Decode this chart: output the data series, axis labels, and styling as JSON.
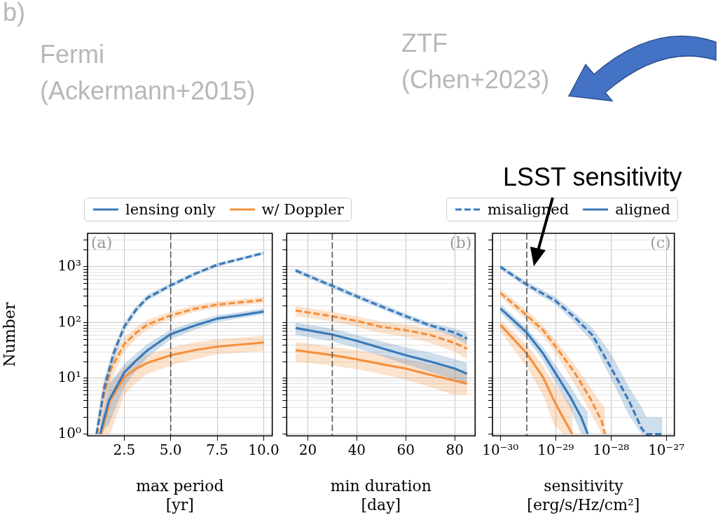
{
  "chart_data": [
    {
      "type": "line",
      "xlabel": "max period\n[yr]",
      "ylabel": "Number",
      "legend": "top",
      "grid": true,
      "log": "y",
      "marker": "none",
      "xlim": [
        0.53,
        10.46
      ],
      "ylim": [
        0.93,
        4000
      ],
      "xticks": [
        {
          "value": 2.5,
          "label": "2.5"
        },
        {
          "value": 5,
          "label": "5.0"
        },
        {
          "value": 7.5,
          "label": "7.5"
        },
        {
          "value": 10,
          "label": "10.0"
        }
      ],
      "yticks": [
        {
          "value": 1,
          "label": "10⁰"
        },
        {
          "value": 2,
          "label": null
        },
        {
          "value": 3,
          "label": null
        },
        {
          "value": 4,
          "label": null
        },
        {
          "value": 5,
          "label": null
        },
        {
          "value": 6,
          "label": null
        },
        {
          "value": 7,
          "label": null
        },
        {
          "value": 8,
          "label": null
        },
        {
          "value": 9,
          "label": null
        },
        {
          "value": 10,
          "label": "10¹"
        },
        {
          "value": 20,
          "label": null
        },
        {
          "value": 30,
          "label": null
        },
        {
          "value": 40,
          "label": null
        },
        {
          "value": 50,
          "label": null
        },
        {
          "value": 60,
          "label": null
        },
        {
          "value": 70,
          "label": null
        },
        {
          "value": 80,
          "label": null
        },
        {
          "value": 90,
          "label": null
        },
        {
          "value": 100,
          "label": "10²"
        },
        {
          "value": 200,
          "label": null
        },
        {
          "value": 300,
          "label": null
        },
        {
          "value": 400,
          "label": null
        },
        {
          "value": 500,
          "label": null
        },
        {
          "value": 600,
          "label": null
        },
        {
          "value": 700,
          "label": null
        },
        {
          "value": 800,
          "label": null
        },
        {
          "value": 900,
          "label": null
        },
        {
          "value": 1000,
          "label": "10³"
        },
        {
          "value": 2000,
          "label": null
        },
        {
          "value": 3000,
          "label": null
        }
      ],
      "ref_lines": [
        {
          "axis": "x",
          "value": 5,
          "color": "#555555",
          "line_style": "dashed"
        }
      ],
      "annotations": [
        "(a)",
        "aligned",
        "b)",
        "Fermi\n(Ackermann+2015)",
        "ZTF\n(Chen+2023)"
      ],
      "series": [
        {
          "name": "lensing only",
          "color": "#3a7ab8",
          "line_style": "solid",
          "x": [
            1.2,
            1.68,
            2.5,
            3.15,
            3.76,
            5,
            6.28,
            7.5,
            8.76,
            10
          ],
          "values": [
            1,
            4,
            12.7,
            21,
            32,
            62,
            88,
            118,
            136,
            158
          ],
          "lower": [
            1,
            1.5,
            7,
            14,
            24,
            50,
            74,
            102,
            120,
            140
          ],
          "upper": [
            1.5,
            8,
            18,
            28,
            42,
            74,
            104,
            136,
            155,
            180
          ]
        },
        {
          "name": "w/ Doppler",
          "color": "#f5903c",
          "line_style": "solid",
          "x": [
            1.26,
            1.74,
            2.5,
            3.15,
            3.76,
            5,
            6.28,
            7.5,
            10
          ],
          "values": [
            1,
            4,
            10.5,
            15,
            19,
            26,
            32,
            37,
            44
          ],
          "lower": [
            1,
            1,
            5,
            8.5,
            12,
            17,
            22,
            27,
            31
          ],
          "upper": [
            2,
            8,
            16,
            22,
            27,
            36,
            44,
            50,
            58
          ]
        },
        {
          "name": "misaligned",
          "color": "#3a7ab8",
          "line_style": "dashed",
          "x": [
            1.01,
            1.44,
            1.93,
            2.5,
            3.15,
            3.76,
            5,
            6.28,
            7.5,
            8.76,
            10
          ],
          "values": [
            1,
            7,
            28,
            84,
            173,
            280,
            465,
            745,
            1090,
            1390,
            1770
          ],
          "lower": [
            1,
            4,
            20,
            70,
            150,
            250,
            420,
            690,
            1000,
            1300,
            1650
          ],
          "upper": [
            1.5,
            10,
            36,
            100,
            200,
            320,
            510,
            800,
            1180,
            1490,
            1900
          ]
        },
        {
          "color": "#f5903c",
          "line_style": "dashed",
          "x": [
            1.05,
            1.32,
            1.8,
            2.5,
            3.15,
            3.76,
            5,
            6.28,
            7.5,
            10
          ],
          "values": [
            1,
            4,
            15,
            41,
            66,
            93,
            134,
            177,
            210,
            255
          ],
          "lower": [
            1,
            2.5,
            9,
            30,
            52,
            76,
            115,
            155,
            185,
            225
          ],
          "upper": [
            1.5,
            7,
            22,
            55,
            82,
            112,
            158,
            205,
            240,
            290
          ]
        }
      ]
    },
    {
      "type": "line",
      "xlabel": "min duration\n[day]",
      "grid": true,
      "log": "y",
      "marker": "none",
      "tick_labels": "x",
      "xlim": [
        11.4,
        88.3
      ],
      "ylim": [
        0.93,
        4000
      ],
      "xticks": [
        20,
        40,
        60,
        80
      ],
      "yticks": [
        {
          "value": 1,
          "label": null
        },
        {
          "value": 2,
          "label": null
        },
        {
          "value": 3,
          "label": null
        },
        {
          "value": 4,
          "label": null
        },
        {
          "value": 5,
          "label": null
        },
        {
          "value": 6,
          "label": null
        },
        {
          "value": 7,
          "label": null
        },
        {
          "value": 8,
          "label": null
        },
        {
          "value": 9,
          "label": null
        },
        {
          "value": 10,
          "label": null
        },
        {
          "value": 20,
          "label": null
        },
        {
          "value": 30,
          "label": null
        },
        {
          "value": 40,
          "label": null
        },
        {
          "value": 50,
          "label": null
        },
        {
          "value": 60,
          "label": null
        },
        {
          "value": 70,
          "label": null
        },
        {
          "value": 80,
          "label": null
        },
        {
          "value": 90,
          "label": null
        },
        {
          "value": 100,
          "label": null
        },
        {
          "value": 200,
          "label": null
        },
        {
          "value": 300,
          "label": null
        },
        {
          "value": 400,
          "label": null
        },
        {
          "value": 500,
          "label": null
        },
        {
          "value": 600,
          "label": null
        },
        {
          "value": 700,
          "label": null
        },
        {
          "value": 800,
          "label": null
        },
        {
          "value": 900,
          "label": null
        },
        {
          "value": 1000,
          "label": null
        },
        {
          "value": 2000,
          "label": null
        },
        {
          "value": 3000,
          "label": null
        }
      ],
      "ref_lines": [
        {
          "axis": "x",
          "value": 30,
          "color": "#555555",
          "line_style": "dashed"
        }
      ],
      "annotations": [
        "(b)"
      ],
      "series": [
        {
          "color": "#3a7ab8",
          "line_style": "solid",
          "x": [
            15,
            30,
            40,
            50,
            60,
            70,
            80,
            85
          ],
          "values": [
            80,
            61,
            47,
            35,
            26,
            20,
            15,
            12
          ],
          "lower": [
            60,
            46,
            35,
            25,
            18,
            13,
            9.5,
            8
          ],
          "upper": [
            100,
            78,
            60,
            46,
            36,
            29,
            22,
            19
          ]
        },
        {
          "color": "#f5903c",
          "line_style": "solid",
          "x": [
            15,
            30,
            40,
            50,
            60,
            70,
            80,
            85
          ],
          "values": [
            32,
            26,
            22,
            18,
            15,
            11.6,
            9.1,
            8
          ],
          "lower": [
            20,
            17,
            14.5,
            12,
            9.5,
            7,
            5,
            5
          ],
          "upper": [
            45,
            37,
            32,
            27,
            22,
            18,
            15,
            14
          ]
        },
        {
          "color": "#3a7ab8",
          "line_style": "dashed",
          "x": [
            15,
            30,
            40,
            50,
            60,
            70,
            80,
            85
          ],
          "values": [
            860,
            455,
            295,
            195,
            130,
            89,
            66,
            52
          ],
          "lower": [
            780,
            410,
            265,
            175,
            115,
            80,
            55,
            40
          ],
          "upper": [
            950,
            500,
            330,
            220,
            145,
            100,
            78,
            66
          ]
        },
        {
          "color": "#f5903c",
          "line_style": "dashed",
          "x": [
            15,
            30,
            40,
            50,
            60,
            70,
            80,
            85
          ],
          "values": [
            165,
            130,
            107,
            84,
            73,
            60,
            43,
            34
          ],
          "lower": [
            130,
            105,
            85,
            65,
            55,
            43,
            30,
            22
          ],
          "upper": [
            200,
            155,
            130,
            105,
            92,
            78,
            60,
            50
          ]
        }
      ]
    },
    {
      "type": "line",
      "xlabel": "sensitivity\n[erg/s/Hz/cm²]",
      "grid": true,
      "log": "xy",
      "marker": "none",
      "tick_labels": "x",
      "xlim": [
        7.2e-31,
        1.4e-27
      ],
      "ylim": [
        0.93,
        4000
      ],
      "xticks": [
        {
          "value": 1e-30,
          "label": "10⁻³⁰"
        },
        {
          "value": 1e-29,
          "label": "10⁻²⁹"
        },
        {
          "value": 1e-28,
          "label": "10⁻²⁸"
        },
        {
          "value": 1e-27,
          "label": "10⁻²⁷"
        }
      ],
      "yticks": [
        {
          "value": 1,
          "label": null
        },
        {
          "value": 2,
          "label": null
        },
        {
          "value": 3,
          "label": null
        },
        {
          "value": 4,
          "label": null
        },
        {
          "value": 5,
          "label": null
        },
        {
          "value": 6,
          "label": null
        },
        {
          "value": 7,
          "label": null
        },
        {
          "value": 8,
          "label": null
        },
        {
          "value": 9,
          "label": null
        },
        {
          "value": 10,
          "label": null
        },
        {
          "value": 20,
          "label": null
        },
        {
          "value": 30,
          "label": null
        },
        {
          "value": 40,
          "label": null
        },
        {
          "value": 50,
          "label": null
        },
        {
          "value": 60,
          "label": null
        },
        {
          "value": 70,
          "label": null
        },
        {
          "value": 80,
          "label": null
        },
        {
          "value": 90,
          "label": null
        },
        {
          "value": 100,
          "label": null
        },
        {
          "value": 200,
          "label": null
        },
        {
          "value": 300,
          "label": null
        },
        {
          "value": 400,
          "label": null
        },
        {
          "value": 500,
          "label": null
        },
        {
          "value": 600,
          "label": null
        },
        {
          "value": 700,
          "label": null
        },
        {
          "value": 800,
          "label": null
        },
        {
          "value": 900,
          "label": null
        },
        {
          "value": 1000,
          "label": null
        },
        {
          "value": 2000,
          "label": null
        },
        {
          "value": 3000,
          "label": null
        }
      ],
      "ref_lines": [
        {
          "axis": "x",
          "value": 3e-30,
          "color": "#555555",
          "line_style": "dashed"
        }
      ],
      "annotations": [
        "(c)",
        "LSST sensitivity"
      ],
      "series": [
        {
          "color": "#3a7ab8",
          "line_style": "solid",
          "x": [
            1e-30,
            3e-30,
            5.9e-30,
            1e-29,
            1.8e-29,
            2.9e-29,
            3.8e-29
          ],
          "values": [
            180,
            66,
            28,
            12.2,
            4.8,
            2,
            1
          ],
          "lower": [
            150,
            52,
            21,
            8,
            3,
            1,
            1
          ],
          "upper": [
            215,
            80,
            36,
            17,
            7.5,
            3.5,
            2.5
          ]
        },
        {
          "color": "#f5903c",
          "line_style": "solid",
          "x": [
            1e-30,
            3e-30,
            5.9e-30,
            9.3e-30,
            1.35e-29,
            2e-29
          ],
          "values": [
            91,
            28,
            10.5,
            4,
            2,
            1
          ],
          "lower": [
            70,
            16,
            5,
            1.5,
            1,
            1
          ],
          "upper": [
            110,
            40,
            17,
            8,
            5,
            3
          ]
        },
        {
          "color": "#3a7ab8",
          "line_style": "dashed",
          "x": [
            1e-30,
            3e-30,
            1e-29,
            2.2e-29,
            4.6e-29,
            1e-28,
            2.1e-28,
            3.6e-28,
            4.4e-28,
            8.5e-28
          ],
          "values": [
            1000,
            480,
            245,
            124,
            60,
            15.5,
            4,
            1.25,
            1,
            1
          ],
          "lower": [
            900,
            420,
            210,
            100,
            45,
            10,
            2.2,
            1,
            1,
            1
          ],
          "upper": [
            1100,
            540,
            290,
            150,
            80,
            28,
            7,
            3,
            2,
            2
          ]
        },
        {
          "color": "#f5903c",
          "line_style": "dashed",
          "x": [
            1e-30,
            3e-30,
            5.9e-30,
            1e-29,
            2.2e-29,
            4.2e-29,
            6.8e-29,
            7.8e-29
          ],
          "values": [
            340,
            135,
            73,
            37,
            12.7,
            4.4,
            1.7,
            1
          ],
          "lower": [
            290,
            110,
            58,
            28,
            8,
            2.5,
            1,
            1
          ],
          "upper": [
            400,
            165,
            90,
            48,
            18,
            7,
            3.5,
            3
          ]
        }
      ]
    }
  ]
}
